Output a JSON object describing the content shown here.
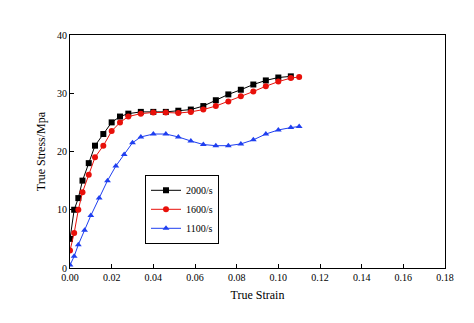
{
  "chart_data": {
    "type": "line",
    "x_label": "True Strain",
    "y_label": "True Stress/Mpa",
    "xlim": [
      0,
      0.18
    ],
    "xticks": [
      {
        "value": 0,
        "label": "0.00"
      },
      {
        "value": 0.02,
        "label": "0.02"
      },
      {
        "value": 0.04,
        "label": "0.04"
      },
      {
        "value": 0.06,
        "label": "0.06"
      },
      {
        "value": 0.08,
        "label": "0.08"
      },
      {
        "value": 0.1,
        "label": "0.10"
      },
      {
        "value": 0.12,
        "label": "0.12"
      },
      {
        "value": 0.14,
        "label": "0.14"
      },
      {
        "value": 0.16,
        "label": "0.16"
      },
      {
        "value": 0.18,
        "label": "0.18"
      }
    ],
    "ylim": [
      0,
      40
    ],
    "yticks": [
      0,
      10,
      20,
      30,
      40
    ],
    "grid": false,
    "legend": "center",
    "series": [
      {
        "name": "2000/s",
        "color": "#000000",
        "marker": "square",
        "line_style": "solid",
        "x": [
          0,
          0.002,
          0.004,
          0.006,
          0.009,
          0.012,
          0.016,
          0.02,
          0.024,
          0.028,
          0.034,
          0.04,
          0.046,
          0.052,
          0.058,
          0.064,
          0.07,
          0.076,
          0.082,
          0.088,
          0.094,
          0.1,
          0.106
        ],
        "values": [
          5,
          10,
          12,
          15,
          18,
          21,
          23,
          25,
          26,
          26.5,
          26.8,
          26.8,
          26.8,
          27,
          27.2,
          27.8,
          28.8,
          29.8,
          30.6,
          31.5,
          32.2,
          32.7,
          32.9
        ]
      },
      {
        "name": "1600/s",
        "color": "#e8100a",
        "marker": "circle",
        "line_style": "solid",
        "x": [
          0,
          0.002,
          0.004,
          0.006,
          0.009,
          0.012,
          0.016,
          0.02,
          0.024,
          0.028,
          0.034,
          0.04,
          0.046,
          0.052,
          0.058,
          0.064,
          0.07,
          0.076,
          0.082,
          0.088,
          0.094,
          0.1,
          0.106,
          0.11
        ],
        "values": [
          3,
          6,
          10,
          13,
          16,
          19,
          21,
          23.5,
          25,
          26,
          26.5,
          26.7,
          26.7,
          26.6,
          26.8,
          27.2,
          27.8,
          28.6,
          29.5,
          30.3,
          31.2,
          32,
          32.6,
          32.8
        ]
      },
      {
        "name": "1100/s",
        "color": "#1f3ff0",
        "marker": "triangle-up",
        "line_style": "solid",
        "x": [
          0,
          0.002,
          0.004,
          0.007,
          0.01,
          0.014,
          0.018,
          0.022,
          0.026,
          0.03,
          0.034,
          0.04,
          0.046,
          0.052,
          0.058,
          0.064,
          0.07,
          0.076,
          0.082,
          0.088,
          0.094,
          0.1,
          0.106,
          0.11
        ],
        "values": [
          0.5,
          2,
          4,
          6.5,
          9,
          12,
          15,
          17.5,
          19.5,
          21.5,
          22.5,
          23,
          23,
          22.5,
          21.8,
          21.2,
          21,
          21,
          21.3,
          22,
          23,
          23.7,
          24.1,
          24.3
        ]
      }
    ]
  }
}
